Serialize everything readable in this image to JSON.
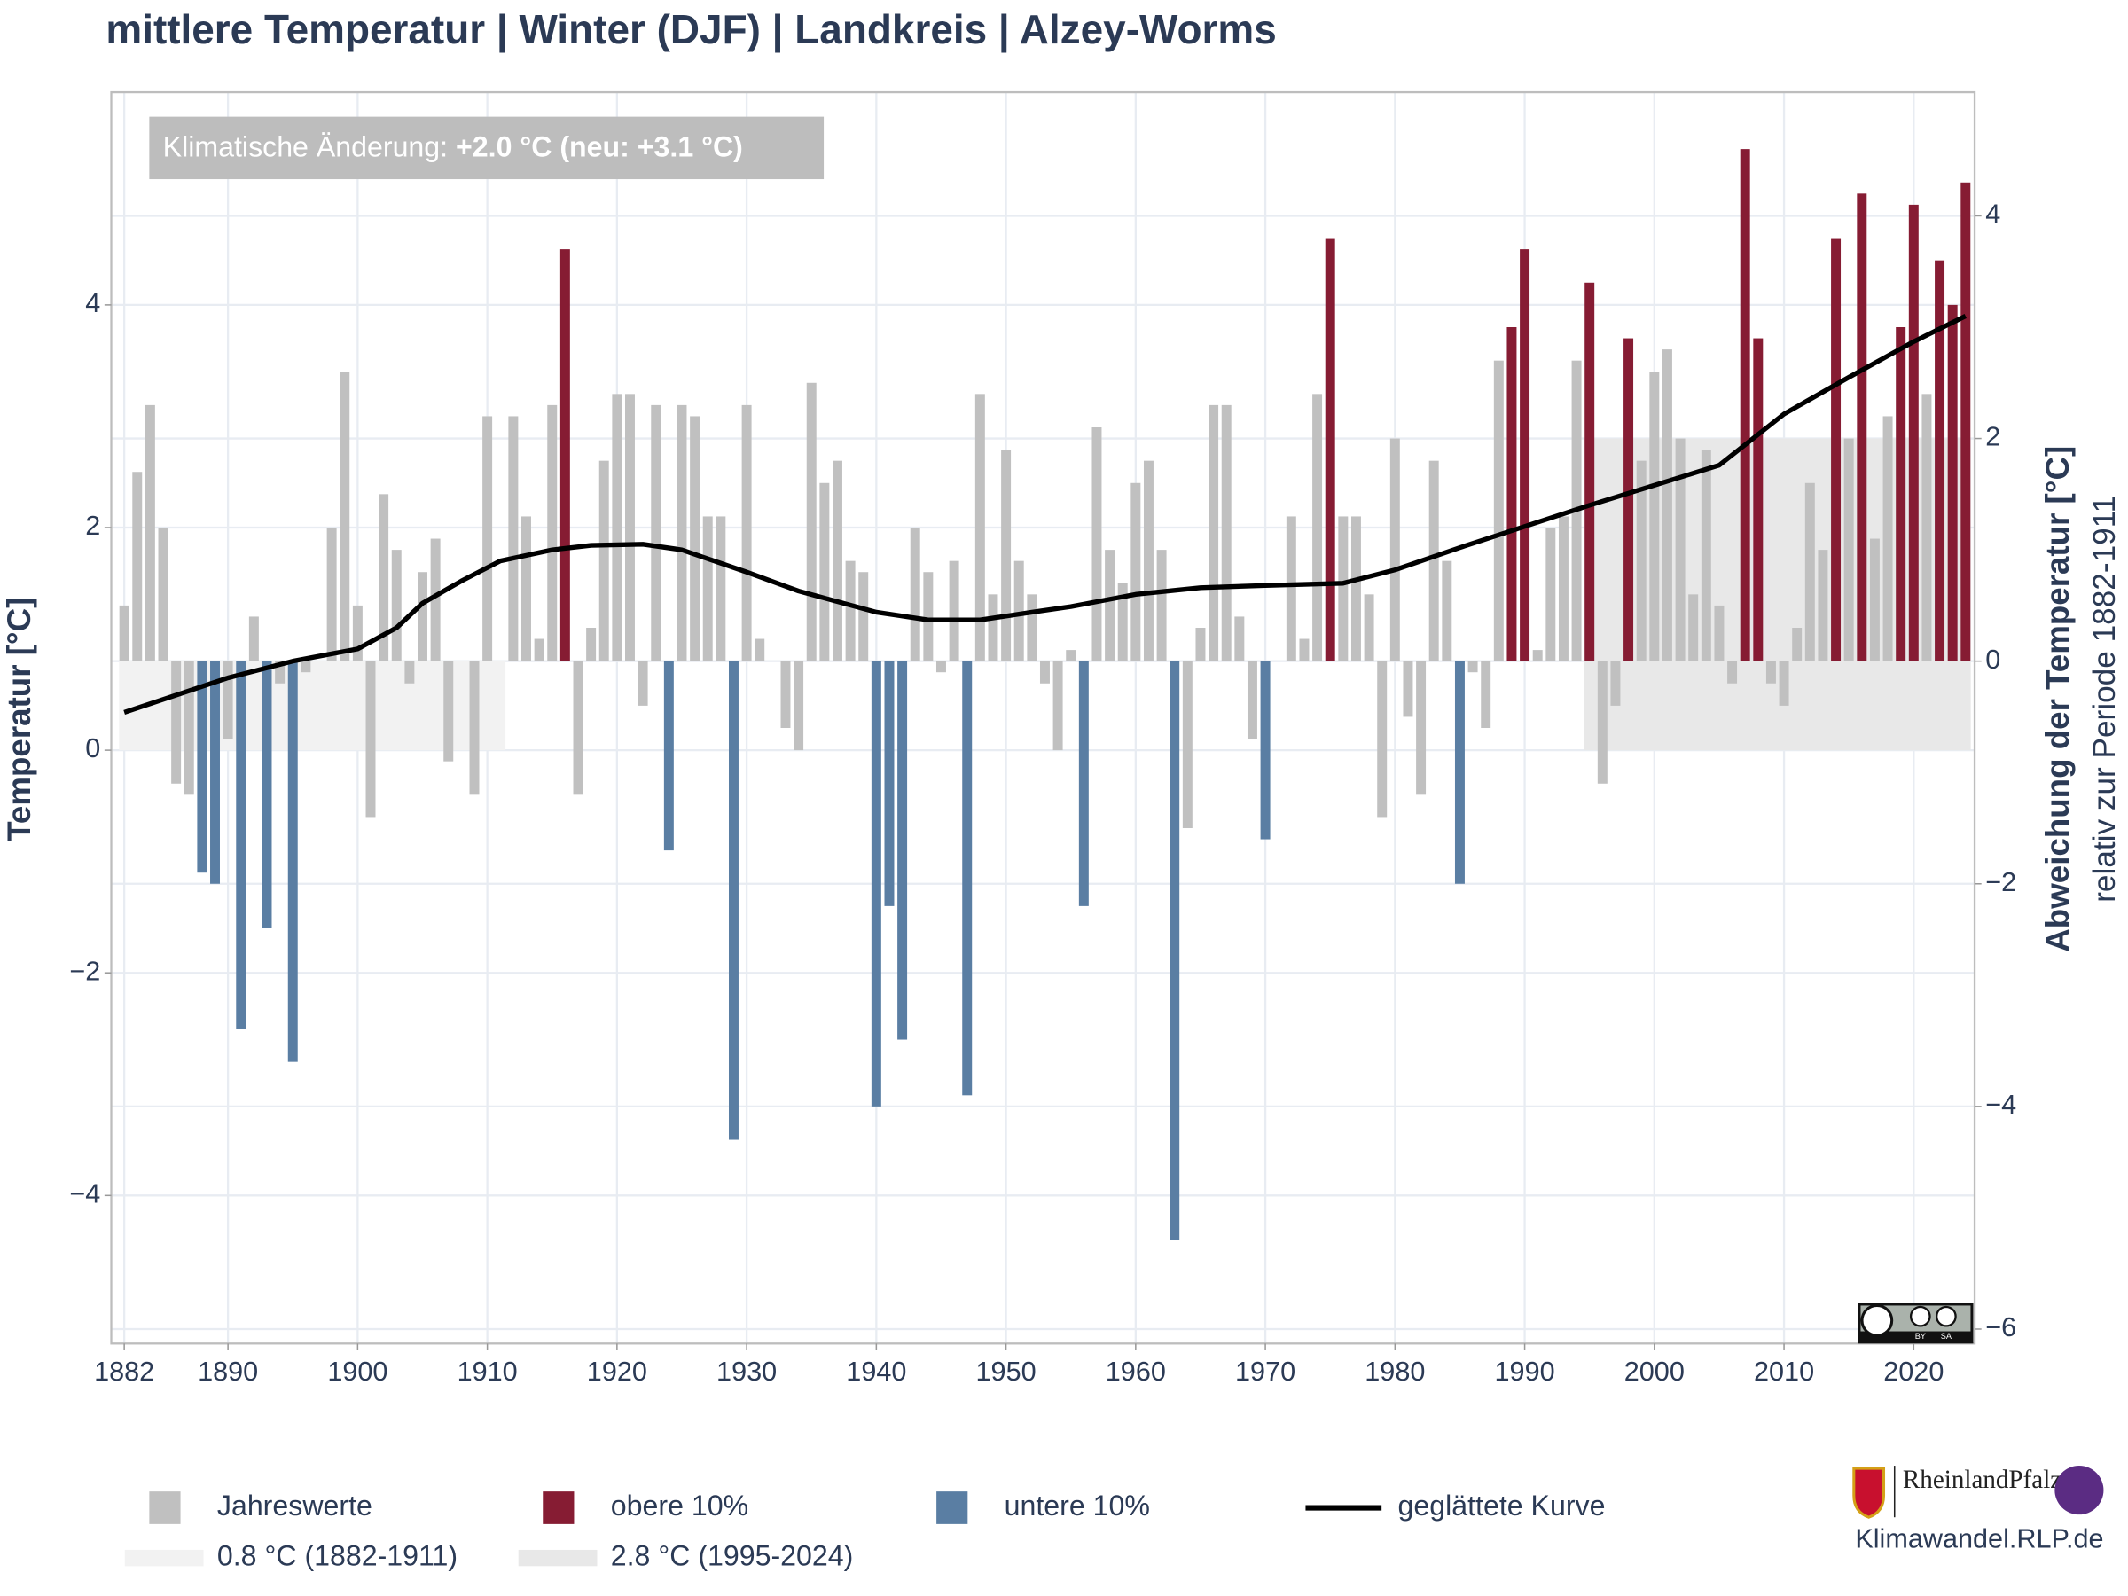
{
  "chart_data": {
    "type": "bar",
    "title": "mittlere Temperatur | Winter (DJF) | Landkreis | Alzey-Worms",
    "annotation": {
      "label": "Klimatische Änderung: ",
      "value": "+2.0 °C (neu: +3.1 °C)"
    },
    "ylabel": "Temperatur [°C]",
    "y2label": "Abweichung der Temperatur [°C]",
    "y2sublabel": "relativ zur Periode 1882-1911",
    "xlim": [
      1881,
      2024.7
    ],
    "ylim": [
      -5.33,
      5.91
    ],
    "y2lim": [
      -6.13,
      5.11
    ],
    "xticks": [
      1882,
      1890,
      1900,
      1910,
      1920,
      1930,
      1940,
      1950,
      1960,
      1970,
      1980,
      1990,
      2000,
      2010,
      2020
    ],
    "yticks": [
      {
        "value": -4,
        "label": "−4"
      },
      {
        "value": -2,
        "label": "−2"
      },
      0,
      2,
      4
    ],
    "y2ticks": [
      {
        "value": -6,
        "label": "−6"
      },
      {
        "value": -4,
        "label": "−4"
      },
      {
        "value": -2,
        "label": "−2"
      },
      0,
      2,
      4
    ],
    "grid": true,
    "bands": [
      {
        "name": "0.8 °C (1882-1911)",
        "value": 0.8,
        "x": [
          1882,
          1911
        ],
        "color": "#f2f2f2"
      },
      {
        "name": "2.8 °C (1995-2024)",
        "value": 2.8,
        "x": [
          1995,
          2024
        ],
        "color": "#e8e8e8"
      }
    ],
    "series": [
      {
        "name": "Jahreswerte",
        "color": "#c0c0c0",
        "x": [
          1882,
          1883,
          1884,
          1885,
          1886,
          1887,
          1890,
          1892,
          1894,
          1896,
          1897,
          1898,
          1899,
          1900,
          1901,
          1902,
          1903,
          1904,
          1905,
          1906,
          1907,
          1908,
          1909,
          1910,
          1911,
          1912,
          1913,
          1914,
          1915,
          1917,
          1918,
          1919,
          1920,
          1921,
          1922,
          1923,
          1925,
          1926,
          1927,
          1928,
          1930,
          1931,
          1932,
          1933,
          1934,
          1935,
          1936,
          1937,
          1938,
          1939,
          1943,
          1944,
          1945,
          1946,
          1948,
          1949,
          1950,
          1951,
          1952,
          1953,
          1954,
          1955,
          1957,
          1958,
          1959,
          1960,
          1961,
          1962,
          1964,
          1965,
          1966,
          1967,
          1968,
          1969,
          1971,
          1972,
          1973,
          1974,
          1976,
          1977,
          1978,
          1979,
          1980,
          1981,
          1982,
          1983,
          1984,
          1986,
          1987,
          1988,
          1991,
          1992,
          1993,
          1994,
          1996,
          1997,
          1999,
          2000,
          2001,
          2002,
          2003,
          2004,
          2005,
          2006,
          2009,
          2010,
          2011,
          2012,
          2013,
          2015,
          2017,
          2018,
          2021
        ],
        "values": [
          1.3,
          2.5,
          3.1,
          2.0,
          -0.3,
          -0.4,
          0.1,
          1.2,
          0.6,
          0.7,
          0.8,
          2.0,
          3.4,
          1.3,
          -0.6,
          2.3,
          1.8,
          0.6,
          1.6,
          1.9,
          -0.1,
          0.8,
          -0.4,
          3.0,
          0.8,
          3.0,
          2.1,
          1.0,
          3.1,
          -0.4,
          1.1,
          2.6,
          3.2,
          3.2,
          0.4,
          3.1,
          3.1,
          3.0,
          2.1,
          2.1,
          3.1,
          1.0,
          0.8,
          0.2,
          0.0,
          3.3,
          2.4,
          2.6,
          1.7,
          1.6,
          2.0,
          1.6,
          0.7,
          1.7,
          3.2,
          1.4,
          2.7,
          1.7,
          1.4,
          0.6,
          0.0,
          0.9,
          2.9,
          1.8,
          1.5,
          2.4,
          2.6,
          1.8,
          -0.7,
          1.1,
          3.1,
          3.1,
          1.2,
          0.1,
          0.8,
          2.1,
          1.0,
          3.2,
          2.1,
          2.1,
          1.4,
          -0.6,
          2.8,
          0.3,
          -0.4,
          2.6,
          1.7,
          0.7,
          0.2,
          3.5,
          0.9,
          2.0,
          2.1,
          3.5,
          -0.3,
          0.4,
          2.6,
          3.4,
          3.6,
          2.8,
          1.4,
          2.7,
          1.3,
          0.6,
          0.6,
          0.4,
          1.1,
          2.4,
          1.8,
          2.8,
          1.9,
          3.0,
          3.2
        ]
      },
      {
        "name": "obere 10%",
        "color": "#861c33",
        "x": [
          1916,
          1975,
          1989,
          1990,
          1995,
          1998,
          2007,
          2008,
          2014,
          2016,
          2019,
          2020,
          2022,
          2023,
          2024
        ],
        "values": [
          4.5,
          4.6,
          3.8,
          4.5,
          4.2,
          3.7,
          5.4,
          3.7,
          4.6,
          5.0,
          3.8,
          4.9,
          4.4,
          4.0,
          5.1
        ]
      },
      {
        "name": "untere 10%",
        "color": "#5a7ea3",
        "x": [
          1888,
          1889,
          1891,
          1893,
          1895,
          1924,
          1929,
          1940,
          1941,
          1942,
          1947,
          1956,
          1963,
          1970,
          1985
        ],
        "values": [
          -1.1,
          -1.2,
          -2.5,
          -1.6,
          -2.8,
          -0.9,
          -3.5,
          -3.2,
          -1.4,
          -2.6,
          -3.1,
          -1.4,
          -4.4,
          -0.8,
          -1.2
        ]
      },
      {
        "name": "geglättete Kurve",
        "type": "line",
        "color": "#000000",
        "x": [
          1882,
          1890,
          1895,
          1900,
          1903,
          1905,
          1908,
          1911,
          1915,
          1918,
          1922,
          1925,
          1930,
          1934,
          1940,
          1944,
          1948,
          1952,
          1955,
          1960,
          1965,
          1970,
          1976,
          1980,
          1985,
          1990,
          1995,
          2000,
          2005,
          2010,
          2015,
          2020,
          2024
        ],
        "values": [
          0.34,
          0.65,
          0.8,
          0.91,
          1.1,
          1.32,
          1.52,
          1.7,
          1.8,
          1.84,
          1.85,
          1.8,
          1.6,
          1.43,
          1.24,
          1.17,
          1.17,
          1.24,
          1.29,
          1.4,
          1.46,
          1.48,
          1.5,
          1.62,
          1.82,
          2.01,
          2.2,
          2.38,
          2.56,
          3.02,
          3.35,
          3.67,
          3.9
        ]
      }
    ],
    "license_labels": [
      "BY",
      "SA"
    ],
    "logo_text": "RheinlandPfalz",
    "source": "Klimawandel.RLP.de"
  }
}
